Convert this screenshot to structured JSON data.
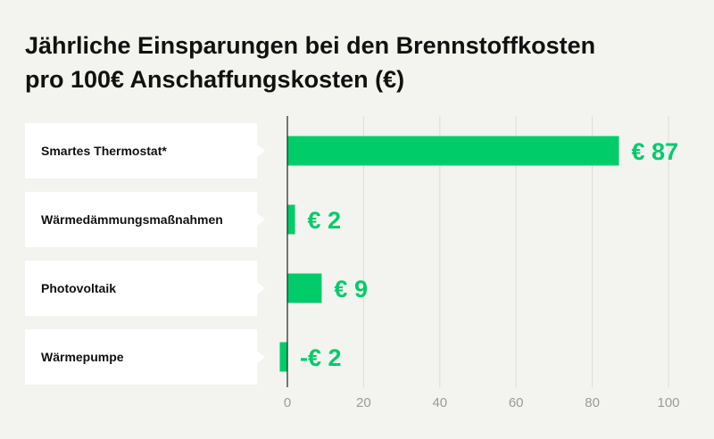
{
  "chart_data": {
    "type": "bar",
    "orientation": "horizontal",
    "title_lines": [
      "Jährliche Einsparungen bei den Brennstoffkosten",
      "pro 100€ Anschaffungskosten (€)"
    ],
    "categories": [
      "Smartes Thermostat*",
      "Wärmedämmungsmaßnahmen",
      "Photovoltaik",
      "Wärmepumpe"
    ],
    "values": [
      87,
      2,
      9,
      -2
    ],
    "value_labels": [
      "€ 87",
      "€ 2",
      "€ 9",
      "-€ 2"
    ],
    "xlim": [
      0,
      100
    ],
    "xticks": [
      "0",
      "20",
      "40",
      "60",
      "80",
      "100"
    ],
    "grid": true,
    "colors": {
      "bar": "#00cc6a",
      "value_text": "#00cc6a",
      "card": "#ffffff",
      "background": "#f3f3ef",
      "grid": "#dddddb",
      "axis": "#222222",
      "tick_text": "#9a9a9a"
    }
  }
}
